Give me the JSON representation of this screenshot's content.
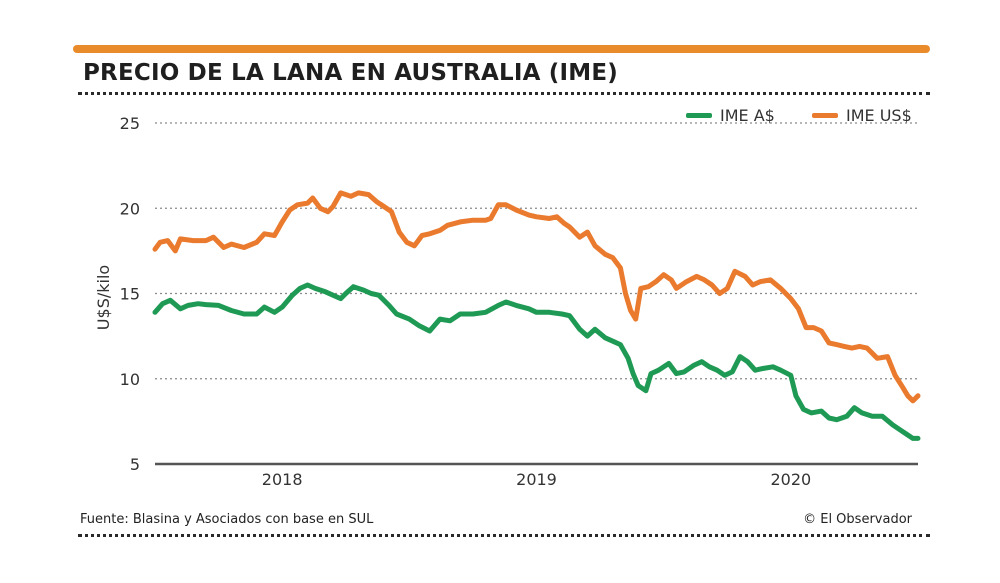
{
  "header": {
    "title": "PRECIO DE LA LANA EN AUSTRALIA (IME)"
  },
  "footer": {
    "source": "Fuente: Blasina y Asociados con base en SUL",
    "credit": "© El Observador"
  },
  "colors": {
    "accent": "#ea8b2b",
    "series_ime_a": "#1f9a55",
    "series_ime_us": "#ea7a2d"
  },
  "chart_data": {
    "type": "line",
    "title": "PRECIO DE LA LANA EN AUSTRALIA (IME)",
    "xlabel": "",
    "ylabel": "U$S/kilo",
    "ylim": [
      5,
      25
    ],
    "yticks": [
      5,
      10,
      15,
      20,
      25
    ],
    "xticks": [
      {
        "label": "2018",
        "x": 2018.0
      },
      {
        "label": "2019",
        "x": 2019.0
      },
      {
        "label": "2020",
        "x": 2020.0
      }
    ],
    "xlim": [
      2017.5,
      2020.5
    ],
    "grid": "horizontal dotted",
    "legend": "top-right",
    "series": [
      {
        "name": "IME A$",
        "color": "#1f9a55",
        "points": [
          [
            2017.5,
            13.9
          ],
          [
            2017.53,
            14.4
          ],
          [
            2017.56,
            14.6
          ],
          [
            2017.6,
            14.1
          ],
          [
            2017.63,
            14.3
          ],
          [
            2017.67,
            14.4
          ],
          [
            2017.7,
            14.35
          ],
          [
            2017.75,
            14.3
          ],
          [
            2017.8,
            14.0
          ],
          [
            2017.85,
            13.8
          ],
          [
            2017.9,
            13.8
          ],
          [
            2017.93,
            14.2
          ],
          [
            2017.97,
            13.9
          ],
          [
            2018.0,
            14.2
          ],
          [
            2018.04,
            14.9
          ],
          [
            2018.07,
            15.3
          ],
          [
            2018.1,
            15.5
          ],
          [
            2018.13,
            15.3
          ],
          [
            2018.17,
            15.1
          ],
          [
            2018.2,
            14.9
          ],
          [
            2018.23,
            14.7
          ],
          [
            2018.25,
            15.0
          ],
          [
            2018.28,
            15.4
          ],
          [
            2018.32,
            15.2
          ],
          [
            2018.35,
            15.0
          ],
          [
            2018.38,
            14.9
          ],
          [
            2018.42,
            14.3
          ],
          [
            2018.45,
            13.8
          ],
          [
            2018.5,
            13.5
          ],
          [
            2018.54,
            13.1
          ],
          [
            2018.58,
            12.8
          ],
          [
            2018.62,
            13.5
          ],
          [
            2018.66,
            13.4
          ],
          [
            2018.7,
            13.8
          ],
          [
            2018.75,
            13.8
          ],
          [
            2018.8,
            13.9
          ],
          [
            2018.85,
            14.3
          ],
          [
            2018.88,
            14.5
          ],
          [
            2018.92,
            14.3
          ],
          [
            2018.97,
            14.1
          ],
          [
            2019.0,
            13.9
          ],
          [
            2019.05,
            13.9
          ],
          [
            2019.1,
            13.8
          ],
          [
            2019.13,
            13.7
          ],
          [
            2019.17,
            12.9
          ],
          [
            2019.2,
            12.5
          ],
          [
            2019.23,
            12.9
          ],
          [
            2019.27,
            12.4
          ],
          [
            2019.3,
            12.2
          ],
          [
            2019.33,
            12.0
          ],
          [
            2019.36,
            11.2
          ],
          [
            2019.38,
            10.3
          ],
          [
            2019.4,
            9.6
          ],
          [
            2019.43,
            9.3
          ],
          [
            2019.45,
            10.3
          ],
          [
            2019.48,
            10.5
          ],
          [
            2019.52,
            10.9
          ],
          [
            2019.55,
            10.3
          ],
          [
            2019.58,
            10.4
          ],
          [
            2019.62,
            10.8
          ],
          [
            2019.65,
            11.0
          ],
          [
            2019.68,
            10.7
          ],
          [
            2019.71,
            10.5
          ],
          [
            2019.74,
            10.2
          ],
          [
            2019.77,
            10.4
          ],
          [
            2019.8,
            11.3
          ],
          [
            2019.83,
            11.0
          ],
          [
            2019.86,
            10.5
          ],
          [
            2019.89,
            10.6
          ],
          [
            2019.93,
            10.7
          ],
          [
            2019.96,
            10.5
          ],
          [
            2020.0,
            10.2
          ],
          [
            2020.02,
            9.0
          ],
          [
            2020.05,
            8.2
          ],
          [
            2020.08,
            8.0
          ],
          [
            2020.12,
            8.1
          ],
          [
            2020.15,
            7.7
          ],
          [
            2020.18,
            7.6
          ],
          [
            2020.22,
            7.8
          ],
          [
            2020.25,
            8.3
          ],
          [
            2020.28,
            8.0
          ],
          [
            2020.32,
            7.8
          ],
          [
            2020.36,
            7.8
          ],
          [
            2020.4,
            7.3
          ],
          [
            2020.43,
            7.0
          ],
          [
            2020.46,
            6.7
          ],
          [
            2020.48,
            6.5
          ],
          [
            2020.5,
            6.5
          ]
        ]
      },
      {
        "name": "IME US$",
        "color": "#ea7a2d",
        "points": [
          [
            2017.5,
            17.6
          ],
          [
            2017.52,
            18.0
          ],
          [
            2017.55,
            18.1
          ],
          [
            2017.58,
            17.5
          ],
          [
            2017.6,
            18.2
          ],
          [
            2017.65,
            18.1
          ],
          [
            2017.7,
            18.1
          ],
          [
            2017.73,
            18.3
          ],
          [
            2017.77,
            17.7
          ],
          [
            2017.8,
            17.9
          ],
          [
            2017.85,
            17.7
          ],
          [
            2017.9,
            18.0
          ],
          [
            2017.93,
            18.5
          ],
          [
            2017.97,
            18.4
          ],
          [
            2018.0,
            19.2
          ],
          [
            2018.03,
            19.9
          ],
          [
            2018.06,
            20.2
          ],
          [
            2018.1,
            20.3
          ],
          [
            2018.12,
            20.6
          ],
          [
            2018.15,
            20.0
          ],
          [
            2018.18,
            19.8
          ],
          [
            2018.2,
            20.1
          ],
          [
            2018.23,
            20.9
          ],
          [
            2018.27,
            20.7
          ],
          [
            2018.3,
            20.9
          ],
          [
            2018.34,
            20.8
          ],
          [
            2018.37,
            20.4
          ],
          [
            2018.4,
            20.1
          ],
          [
            2018.43,
            19.8
          ],
          [
            2018.46,
            18.6
          ],
          [
            2018.49,
            18.0
          ],
          [
            2018.52,
            17.8
          ],
          [
            2018.55,
            18.4
          ],
          [
            2018.58,
            18.5
          ],
          [
            2018.62,
            18.7
          ],
          [
            2018.65,
            19.0
          ],
          [
            2018.7,
            19.2
          ],
          [
            2018.75,
            19.3
          ],
          [
            2018.8,
            19.3
          ],
          [
            2018.82,
            19.4
          ],
          [
            2018.85,
            20.2
          ],
          [
            2018.88,
            20.2
          ],
          [
            2018.92,
            19.9
          ],
          [
            2018.97,
            19.6
          ],
          [
            2019.0,
            19.5
          ],
          [
            2019.05,
            19.4
          ],
          [
            2019.08,
            19.5
          ],
          [
            2019.11,
            19.1
          ],
          [
            2019.13,
            18.9
          ],
          [
            2019.17,
            18.3
          ],
          [
            2019.2,
            18.6
          ],
          [
            2019.23,
            17.8
          ],
          [
            2019.27,
            17.3
          ],
          [
            2019.3,
            17.1
          ],
          [
            2019.33,
            16.5
          ],
          [
            2019.35,
            15.0
          ],
          [
            2019.37,
            14.0
          ],
          [
            2019.39,
            13.5
          ],
          [
            2019.41,
            15.3
          ],
          [
            2019.44,
            15.4
          ],
          [
            2019.47,
            15.7
          ],
          [
            2019.5,
            16.1
          ],
          [
            2019.53,
            15.8
          ],
          [
            2019.55,
            15.3
          ],
          [
            2019.59,
            15.7
          ],
          [
            2019.63,
            16.0
          ],
          [
            2019.66,
            15.8
          ],
          [
            2019.69,
            15.5
          ],
          [
            2019.72,
            15.0
          ],
          [
            2019.75,
            15.3
          ],
          [
            2019.78,
            16.3
          ],
          [
            2019.82,
            16.0
          ],
          [
            2019.85,
            15.5
          ],
          [
            2019.88,
            15.7
          ],
          [
            2019.92,
            15.8
          ],
          [
            2019.96,
            15.3
          ],
          [
            2020.0,
            14.7
          ],
          [
            2020.03,
            14.1
          ],
          [
            2020.06,
            13.0
          ],
          [
            2020.09,
            13.0
          ],
          [
            2020.12,
            12.8
          ],
          [
            2020.15,
            12.1
          ],
          [
            2020.18,
            12.0
          ],
          [
            2020.21,
            11.9
          ],
          [
            2020.24,
            11.8
          ],
          [
            2020.27,
            11.9
          ],
          [
            2020.3,
            11.8
          ],
          [
            2020.34,
            11.2
          ],
          [
            2020.38,
            11.3
          ],
          [
            2020.41,
            10.2
          ],
          [
            2020.44,
            9.5
          ],
          [
            2020.46,
            9.0
          ],
          [
            2020.48,
            8.7
          ],
          [
            2020.5,
            9.0
          ]
        ]
      }
    ]
  }
}
